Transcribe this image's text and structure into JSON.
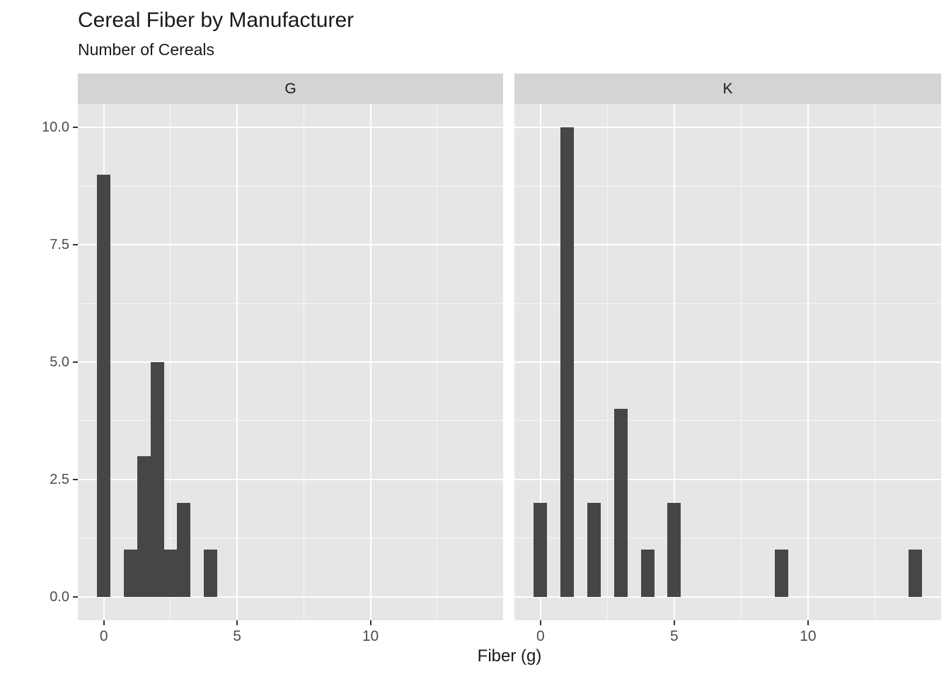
{
  "title": "Cereal Fiber by Manufacturer",
  "subtitle": "Number of Cereals",
  "xlabel": "Fiber (g)",
  "colors": {
    "bar": "#464646",
    "panel_background": "#e6e6e6",
    "strip_background": "#d4d4d4",
    "gridline": "#ffffff",
    "axis_text": "#4d4d4d",
    "tick_mark": "#333333",
    "title_text": "#1a1a1a"
  },
  "chart_data": {
    "type": "bar",
    "subtype": "faceted-histogram",
    "title": "Cereal Fiber by Manufacturer",
    "subtitle": "Number of Cereals",
    "xlabel": "Fiber (g)",
    "ylabel": "",
    "binwidth": 0.5,
    "grid": true,
    "legend_position": "none",
    "x_range": [
      -0.975,
      14.975
    ],
    "y_range": [
      -0.5,
      10.5
    ],
    "x_major_ticks": [
      0,
      5,
      10
    ],
    "x_tick_labels": [
      "0",
      "5",
      "10"
    ],
    "x_minor_ticks": [
      2.5,
      7.5,
      12.5
    ],
    "y_major_ticks": [
      0,
      2.5,
      5,
      7.5,
      10
    ],
    "y_tick_labels": [
      "0.0",
      "2.5",
      "5.0",
      "7.5",
      "10.0"
    ],
    "y_minor_ticks": [
      1.25,
      3.75,
      6.25,
      8.75
    ],
    "facets": [
      {
        "label": "G",
        "bins": [
          {
            "x": 0,
            "count": 9
          },
          {
            "x": 1,
            "count": 1
          },
          {
            "x": 1.5,
            "count": 3
          },
          {
            "x": 2,
            "count": 5
          },
          {
            "x": 2.5,
            "count": 1
          },
          {
            "x": 3,
            "count": 2
          },
          {
            "x": 4,
            "count": 1
          }
        ]
      },
      {
        "label": "K",
        "bins": [
          {
            "x": 0,
            "count": 2
          },
          {
            "x": 1,
            "count": 10
          },
          {
            "x": 2,
            "count": 2
          },
          {
            "x": 3,
            "count": 4
          },
          {
            "x": 4,
            "count": 1
          },
          {
            "x": 5,
            "count": 2
          },
          {
            "x": 9,
            "count": 1
          },
          {
            "x": 14,
            "count": 1
          }
        ]
      }
    ]
  }
}
